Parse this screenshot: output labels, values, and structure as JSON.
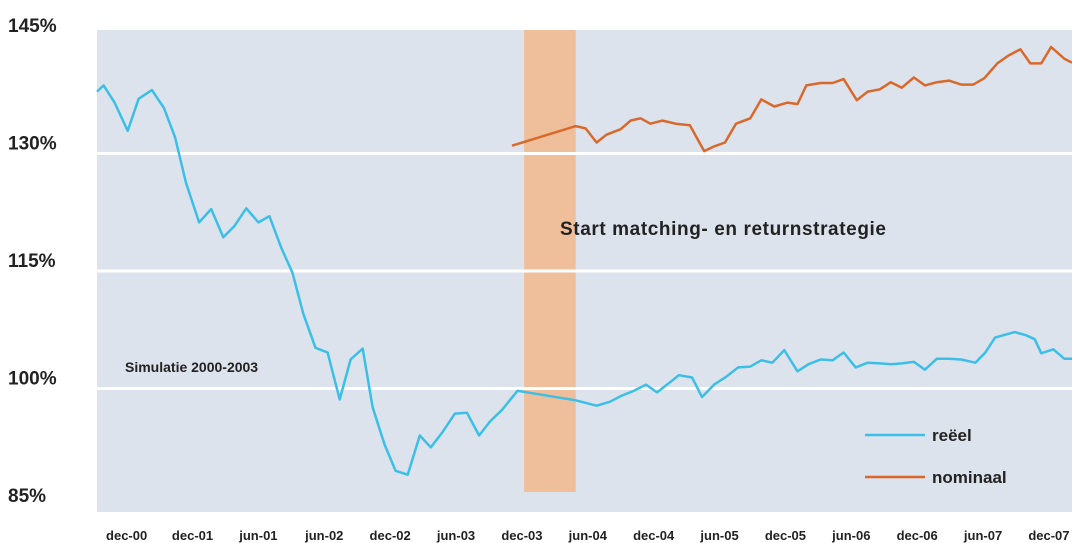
{
  "chart_data": {
    "type": "line",
    "ylim": [
      85,
      145
    ],
    "yticks": [
      {
        "value": 145,
        "label": "145%"
      },
      {
        "value": 130,
        "label": "130%"
      },
      {
        "value": 115,
        "label": "115%"
      },
      {
        "value": 100,
        "label": "100%"
      },
      {
        "value": 85,
        "label": "85%"
      }
    ],
    "xlim": [
      -2.7,
      86.1
    ],
    "xticks": [
      {
        "value": 0,
        "label": "dec-00"
      },
      {
        "value": 6,
        "label": "dec-01"
      },
      {
        "value": 12,
        "label": "jun-01"
      },
      {
        "value": 18,
        "label": "jun-02"
      },
      {
        "value": 24,
        "label": "dec-02"
      },
      {
        "value": 30,
        "label": "jun-03"
      },
      {
        "value": 36,
        "label": "dec-03"
      },
      {
        "value": 42,
        "label": "jun-04"
      },
      {
        "value": 48,
        "label": "dec-04"
      },
      {
        "value": 54,
        "label": "jun-05"
      },
      {
        "value": 60,
        "label": "dec-05"
      },
      {
        "value": 66,
        "label": "jun-06"
      },
      {
        "value": 72,
        "label": "dec-06"
      },
      {
        "value": 78,
        "label": "jun-07"
      },
      {
        "value": 84,
        "label": "dec-07"
      }
    ],
    "grid": true,
    "highlight": {
      "x": [
        36.2,
        40.9
      ],
      "color": "#efbf9c"
    },
    "annotations": [
      "Start matching- en returnstrategie",
      "Simulatie 2000-2003"
    ],
    "legend": "lower right",
    "series": [
      {
        "name": "reëel",
        "color": "#3bbfe8",
        "x": [
          -2.7,
          -2.1,
          -1.1,
          0.1,
          1.1,
          2.3,
          3.4,
          4.4,
          5.4,
          6.6,
          7.7,
          8.8,
          9.8,
          10.9,
          12.0,
          13.0,
          14.1,
          15.1,
          16.1,
          17.2,
          18.3,
          19.4,
          20.4,
          21.5,
          22.4,
          23.5,
          24.5,
          25.6,
          26.7,
          27.7,
          28.8,
          29.9,
          31.0,
          32.1,
          33.1,
          34.2,
          35.6,
          40.9,
          42.8,
          44.0,
          45.1,
          46.2,
          47.3,
          48.3,
          49.5,
          50.3,
          51.5,
          52.4,
          53.5,
          54.6,
          55.7,
          56.8,
          57.8,
          58.8,
          59.9,
          61.1,
          62.1,
          63.2,
          64.3,
          65.3,
          66.4,
          67.5,
          68.6,
          69.6,
          70.6,
          71.7,
          72.7,
          73.8,
          74.9,
          76.0,
          77.3,
          78.2,
          79.1,
          80.1,
          80.9,
          81.9,
          82.7,
          83.3,
          84.4,
          85.4,
          86.1
        ],
        "values": [
          137.9,
          138.7,
          136.5,
          132.9,
          137.0,
          138.1,
          135.8,
          132.1,
          126.3,
          121.2,
          122.9,
          119.3,
          120.7,
          123.0,
          121.2,
          122.0,
          117.9,
          114.8,
          109.5,
          105.2,
          104.6,
          98.6,
          103.7,
          105.1,
          97.6,
          92.8,
          89.5,
          89.0,
          94.0,
          92.5,
          94.5,
          96.8,
          96.9,
          94.0,
          95.8,
          97.3,
          99.7,
          98.5,
          97.8,
          98.3,
          99.1,
          99.7,
          100.5,
          99.5,
          100.8,
          101.7,
          101.4,
          98.9,
          100.5,
          101.5,
          102.7,
          102.8,
          103.6,
          103.3,
          104.9,
          102.2,
          103.1,
          103.7,
          103.6,
          104.6,
          102.7,
          103.3,
          103.2,
          103.1,
          103.2,
          103.4,
          102.4,
          103.8,
          103.8,
          103.7,
          103.3,
          104.6,
          106.5,
          106.9,
          107.2,
          106.8,
          106.3,
          104.5,
          105.0,
          103.8,
          103.8
        ]
      },
      {
        "name": "nominaal",
        "color": "#d9692b",
        "x": [
          35.1,
          40.9,
          41.8,
          42.8,
          43.7,
          45.0,
          45.9,
          46.8,
          47.7,
          48.8,
          50.0,
          51.3,
          52.6,
          53.5,
          54.5,
          55.5,
          56.8,
          57.8,
          59.0,
          60.2,
          61.1,
          61.9,
          63.2,
          64.3,
          65.3,
          66.5,
          67.5,
          68.6,
          69.6,
          70.6,
          71.7,
          72.7,
          73.8,
          74.9,
          76.0,
          77.1,
          78.1,
          79.3,
          80.3,
          81.4,
          82.3,
          83.3,
          84.2,
          85.4,
          86.1
        ],
        "values": [
          131.0,
          133.5,
          133.2,
          131.4,
          132.4,
          133.1,
          134.2,
          134.5,
          133.8,
          134.2,
          133.8,
          133.6,
          130.3,
          130.9,
          131.4,
          133.8,
          134.5,
          136.9,
          136.0,
          136.5,
          136.3,
          138.7,
          139.0,
          139.0,
          139.5,
          136.8,
          137.9,
          138.2,
          139.1,
          138.4,
          139.7,
          138.7,
          139.1,
          139.3,
          138.8,
          138.8,
          139.6,
          141.5,
          142.5,
          143.3,
          141.5,
          141.5,
          143.6,
          142.1,
          141.6
        ]
      }
    ]
  }
}
